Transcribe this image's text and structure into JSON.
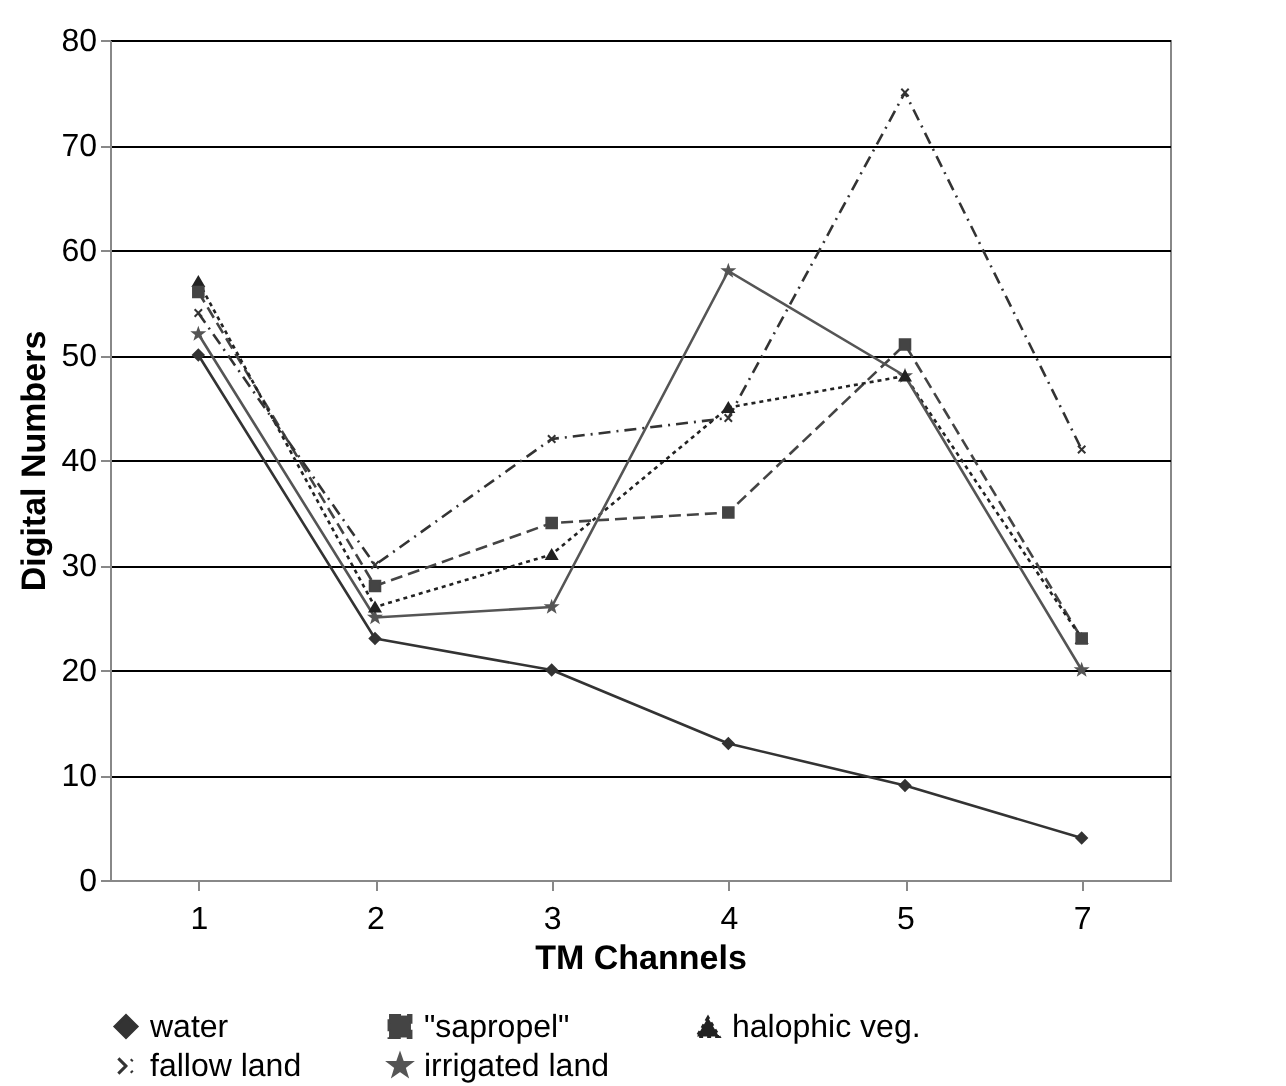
{
  "chart_data": {
    "type": "line",
    "xlabel": "TM Channels",
    "ylabel": "Digital Numbers",
    "categories": [
      "1",
      "2",
      "3",
      "4",
      "5",
      "7"
    ],
    "series": [
      {
        "name": "water",
        "color": "#333333",
        "marker": "diamond",
        "line_style": "solid",
        "values": [
          50,
          23,
          20,
          13,
          9,
          4
        ]
      },
      {
        "name": "\"sapropel\"",
        "color": "#444444",
        "marker": "square",
        "line_style": "dashed",
        "values": [
          56,
          28,
          34,
          35,
          51,
          23
        ]
      },
      {
        "name": "halophic veg.",
        "color": "#222222",
        "marker": "triangle",
        "line_style": "dotted",
        "values": [
          57,
          26,
          31,
          45,
          48,
          23
        ]
      },
      {
        "name": "fallow land",
        "color": "#333333",
        "marker": "cross",
        "line_style": "dashdot",
        "values": [
          54,
          30,
          42,
          44,
          75,
          41
        ]
      },
      {
        "name": "irrigated land",
        "color": "#555555",
        "marker": "star",
        "line_style": "solid",
        "values": [
          52,
          25,
          26,
          58,
          48,
          20
        ]
      }
    ],
    "ylim": [
      0,
      80
    ],
    "yticks": [
      0,
      10,
      20,
      30,
      40,
      50,
      60,
      70,
      80
    ],
    "grid": "y",
    "legend": "bottom"
  }
}
